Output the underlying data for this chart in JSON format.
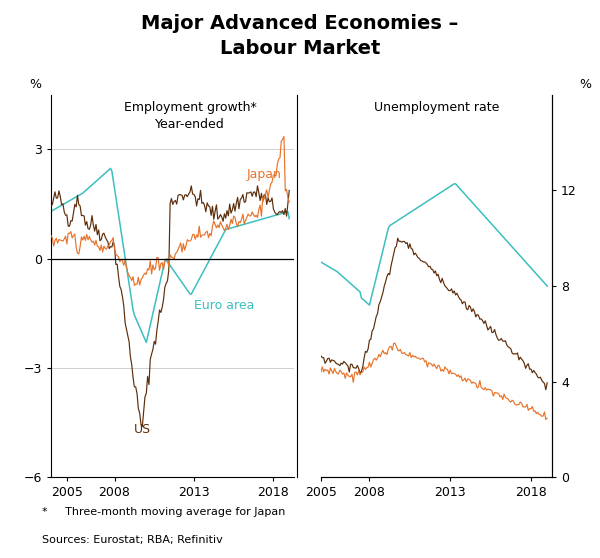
{
  "title": "Major Advanced Economies –\nLabour Market",
  "title_fontsize": 14,
  "subtitle_left": "Employment growth*\nYear-ended",
  "subtitle_right": "Unemployment rate",
  "footnote1": "*     Three-month moving average for Japan",
  "footnote2": "Sources: Eurostat; RBA; Refinitiv",
  "color_us": "#5c2d0a",
  "color_japan": "#e8732a",
  "color_euro": "#3bbfbf",
  "left_ylim": [
    -6,
    4.5
  ],
  "left_yticks": [
    -6,
    -3,
    0,
    3
  ],
  "right_ylim": [
    0,
    16
  ],
  "right_yticks": [
    0,
    4,
    8,
    12
  ],
  "label_japan": "Japan",
  "label_euro": "Euro area",
  "label_us": "US",
  "background_color": "#ffffff"
}
